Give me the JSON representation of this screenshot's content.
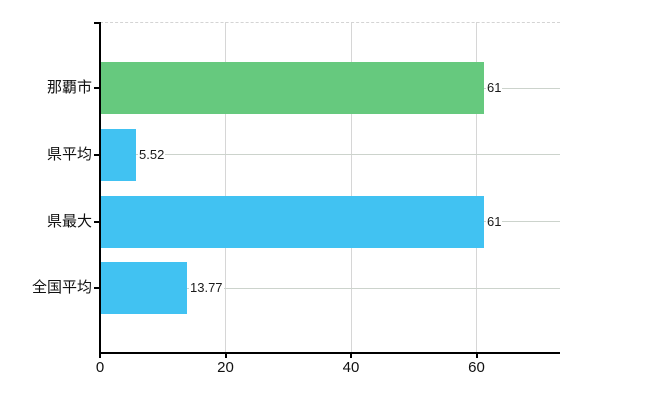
{
  "chart_data": {
    "type": "bar",
    "orientation": "horizontal",
    "categories": [
      "那覇市",
      "県平均",
      "県最大",
      "全国平均"
    ],
    "values": [
      61,
      5.52,
      61,
      13.77
    ],
    "value_labels": [
      "61",
      "5.52",
      "61",
      "13.77"
    ],
    "bar_colors": [
      "#66c97e",
      "#41c2f2",
      "#41c2f2",
      "#41c2f2"
    ],
    "x_ticks": [
      0,
      20,
      40,
      60
    ],
    "x_tick_labels": [
      "0",
      "20",
      "40",
      "60"
    ],
    "xlim": [
      0,
      73.3
    ],
    "grid": true,
    "legend": false,
    "background_color": "#ffffff",
    "axis_color": "#000000",
    "vertical_gridline_color": "#d6d6d6",
    "horizontal_gridline_color": "#ccd3cc",
    "top_border_style": "dashed",
    "text_color": "#111111"
  }
}
